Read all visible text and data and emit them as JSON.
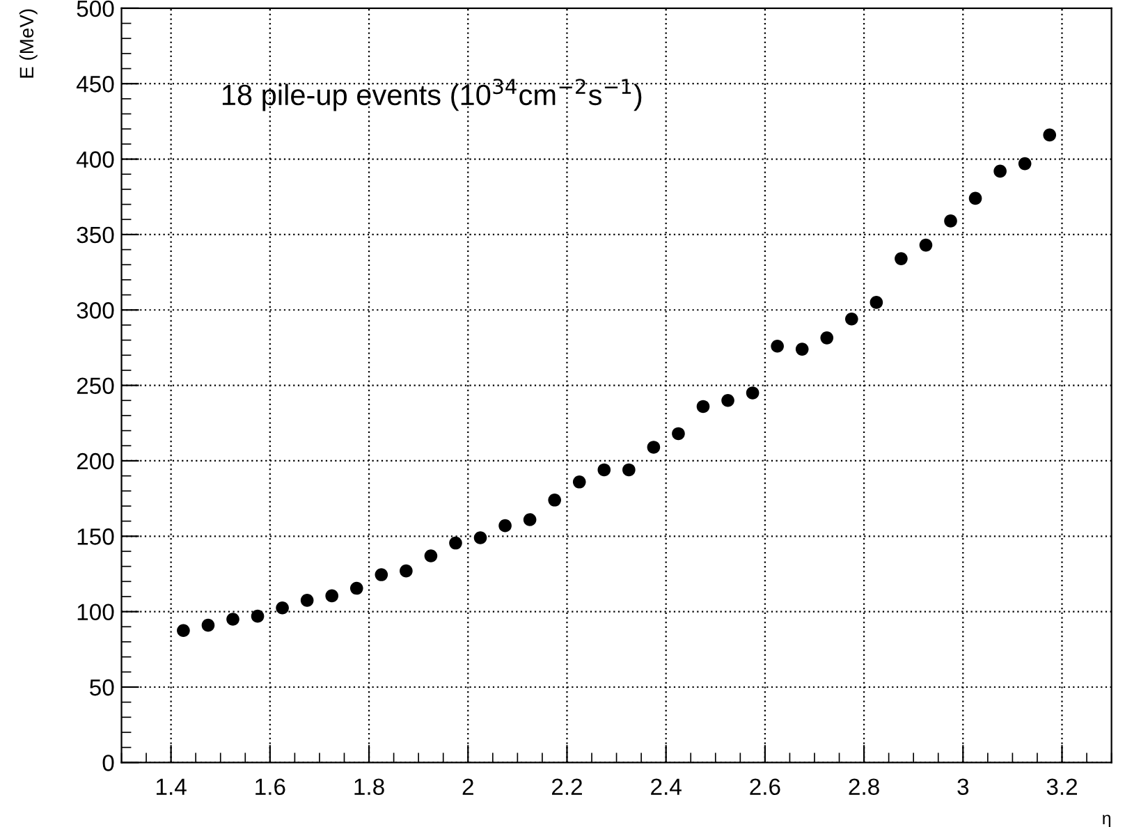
{
  "chart_data": {
    "type": "scatter",
    "xlabel": "η",
    "ylabel": "E (MeV)",
    "annotations": [
      "18 pile-up events (10$^{34}$cm$^{−2}$s$^{−1}$)"
    ],
    "series": [
      {
        "color": "#000000",
        "x": [
          1.425,
          1.475,
          1.525,
          1.575,
          1.625,
          1.675,
          1.725,
          1.775,
          1.825,
          1.875,
          1.925,
          1.975,
          2.025,
          2.075,
          2.125,
          2.175,
          2.225,
          2.275,
          2.325,
          2.375,
          2.425,
          2.475,
          2.525,
          2.575,
          2.625,
          2.675,
          2.725,
          2.775,
          2.825,
          2.875,
          2.925,
          2.975,
          3.025,
          3.075,
          3.125,
          3.175
        ],
        "values": [
          87.5,
          91,
          95,
          97,
          102.5,
          107.5,
          110.5,
          115.5,
          124.5,
          127,
          137,
          145.5,
          149,
          157,
          161,
          174,
          186,
          194,
          194,
          209,
          218,
          236,
          240,
          245,
          276,
          274,
          281.5,
          294,
          305,
          334,
          343,
          359,
          374,
          392,
          397,
          416
        ]
      }
    ],
    "xlim": [
      1.3,
      3.3
    ],
    "ylim": [
      0,
      500
    ],
    "xticks": [
      1.4,
      1.6,
      1.8,
      2,
      2.2,
      2.4,
      2.6,
      2.8,
      3,
      3.2
    ],
    "yticks": [
      0,
      50,
      100,
      150,
      200,
      250,
      300,
      350,
      400,
      450,
      500
    ],
    "grid": true,
    "marker": "circle",
    "legend": false
  }
}
